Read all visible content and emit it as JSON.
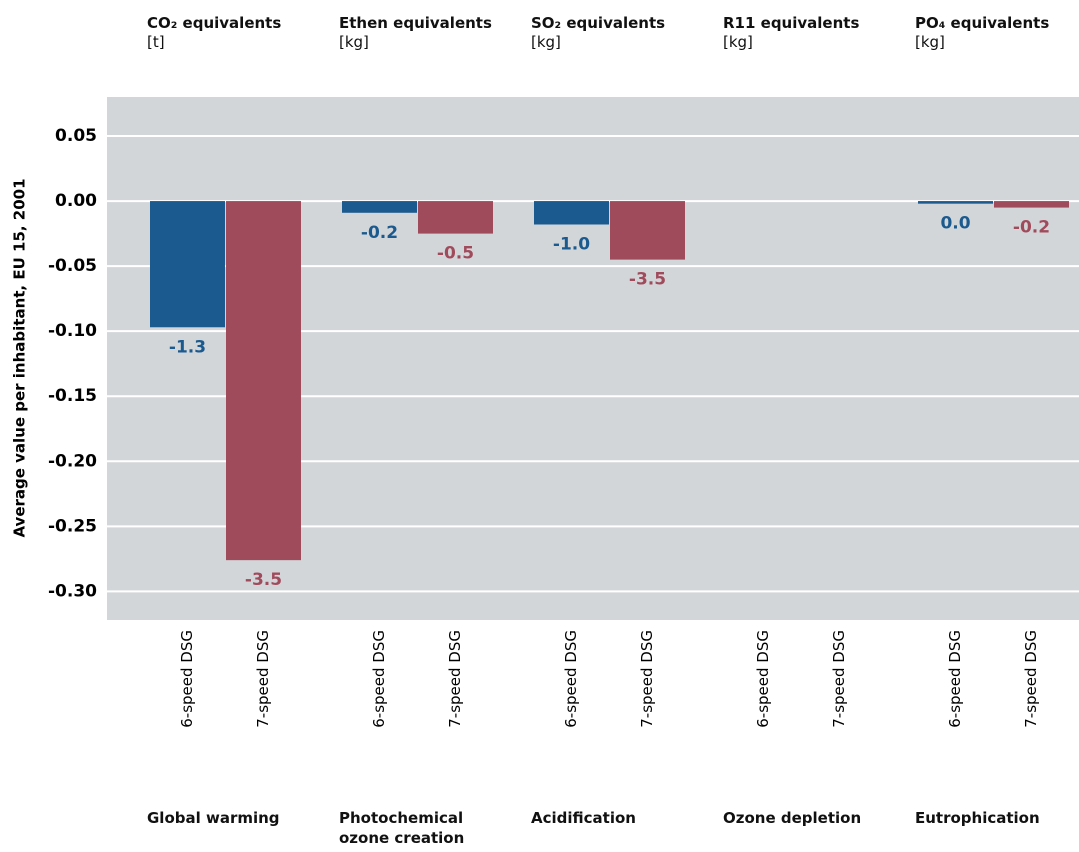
{
  "chart_data": {
    "type": "bar",
    "y_label": "Average value per inhabitant, EU 15, 2001",
    "headers": [
      "CO₂ equivalents",
      "Ethen equivalents",
      "SO₂ equivalents",
      "R11 equivalents",
      "PO₄ equivalents"
    ],
    "units": [
      "[t]",
      "[kg]",
      "[kg]",
      "[kg]",
      "[kg]"
    ],
    "categories": [
      "Global warming",
      "Photochemical ozone creation",
      "Acidification",
      "Ozone depletion",
      "Eutrophication"
    ],
    "series": [
      {
        "name": "6-speed DSG",
        "color": "#1b5a8e",
        "values": [
          -0.097,
          -0.009,
          -0.018,
          null,
          -0.002
        ],
        "data_labels": [
          "-1.3",
          "-0.2",
          "-1.0",
          null,
          "0.0"
        ]
      },
      {
        "name": "7-speed DSG",
        "color": "#a04b5c",
        "values": [
          -0.276,
          -0.025,
          -0.045,
          null,
          -0.005
        ],
        "data_labels": [
          "-3.5",
          "-0.5",
          "-3.5",
          null,
          "-0.2"
        ]
      }
    ],
    "ylim": [
      -0.322,
      0.08
    ],
    "yticks": [
      0.05,
      {
        "value": 0,
        "label": "0.00"
      },
      -0.05,
      {
        "value": -0.1,
        "label": "-0.10"
      },
      -0.15,
      {
        "value": -0.2,
        "label": "-0.20"
      },
      -0.25,
      {
        "value": -0.3,
        "label": "-0.30"
      }
    ],
    "grid": true
  }
}
